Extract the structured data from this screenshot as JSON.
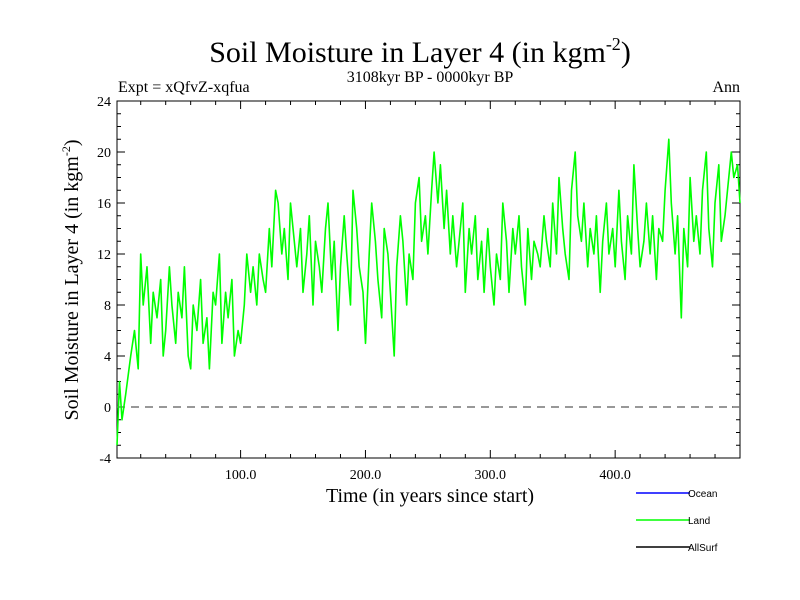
{
  "chart_data": {
    "type": "line",
    "title": "Soil Moisture in Layer 4 (in kgm",
    "title_sup": "-2",
    "title_close": ")",
    "subtitle": "3108kyr BP - 0000kyr BP",
    "experiment_label": "Expt = xQfvZ-xqfua",
    "season_label": "Ann",
    "xlabel": "Time (in years since start)",
    "ylabel": "Soil Moisture in Layer 4 (in kgm",
    "ylabel_sup": "-2",
    "ylabel_close": ")",
    "xlim": [
      1,
      500
    ],
    "ylim": [
      -4,
      24
    ],
    "x_ticks": [
      100,
      200,
      300,
      400
    ],
    "x_tick_labels": [
      "100.0",
      "200.0",
      "300.0",
      "400.0"
    ],
    "y_ticks": [
      -4,
      0,
      4,
      8,
      12,
      16,
      20,
      24
    ],
    "y_tick_labels": [
      "-4",
      "0",
      "4",
      "8",
      "12",
      "16",
      "20",
      "24"
    ],
    "zero_line": 0,
    "legend": [
      {
        "name": "Ocean",
        "color": "#0000ff"
      },
      {
        "name": "Land",
        "color": "#00ff00"
      },
      {
        "name": "AllSurf",
        "color": "#000000"
      }
    ],
    "series": [
      {
        "name": "Land",
        "color": "#00ff00",
        "x": [
          1,
          3,
          5,
          8,
          12,
          15,
          18,
          20,
          22,
          25,
          28,
          30,
          33,
          36,
          38,
          40,
          43,
          45,
          48,
          50,
          53,
          55,
          58,
          60,
          62,
          65,
          68,
          70,
          73,
          75,
          78,
          80,
          83,
          85,
          88,
          90,
          93,
          95,
          98,
          100,
          103,
          105,
          108,
          110,
          113,
          115,
          118,
          120,
          123,
          125,
          128,
          130,
          133,
          135,
          138,
          140,
          143,
          145,
          148,
          150,
          153,
          155,
          158,
          160,
          163,
          165,
          168,
          170,
          173,
          175,
          178,
          180,
          183,
          185,
          188,
          190,
          193,
          195,
          198,
          200,
          203,
          205,
          208,
          210,
          213,
          215,
          218,
          220,
          223,
          225,
          228,
          230,
          233,
          235,
          238,
          240,
          243,
          245,
          248,
          250,
          253,
          255,
          258,
          260,
          263,
          265,
          268,
          270,
          273,
          275,
          278,
          280,
          283,
          285,
          288,
          290,
          293,
          295,
          298,
          300,
          303,
          305,
          308,
          310,
          313,
          315,
          318,
          320,
          323,
          325,
          328,
          330,
          333,
          335,
          338,
          340,
          343,
          345,
          348,
          350,
          353,
          355,
          358,
          360,
          363,
          365,
          368,
          370,
          373,
          375,
          378,
          380,
          383,
          385,
          388,
          390,
          393,
          395,
          398,
          400,
          403,
          405,
          408,
          410,
          413,
          415,
          418,
          420,
          423,
          425,
          428,
          430,
          433,
          435,
          438,
          440,
          443,
          445,
          448,
          450,
          453,
          455,
          458,
          460,
          463,
          465,
          468,
          470,
          473,
          475,
          478,
          480,
          483,
          485,
          488,
          490,
          493,
          495,
          498,
          500
        ],
        "values": [
          -3,
          2,
          -1,
          1,
          4,
          6,
          3,
          12,
          8,
          11,
          5,
          9,
          7,
          10,
          4,
          6,
          11,
          8,
          5,
          9,
          7,
          11,
          4,
          3,
          8,
          6,
          10,
          5,
          7,
          3,
          9,
          8,
          12,
          5,
          9,
          7,
          10,
          4,
          6,
          5,
          8,
          12,
          9,
          11,
          8,
          12,
          10,
          9,
          14,
          11,
          17,
          16,
          12,
          14,
          10,
          16,
          13,
          11,
          14,
          9,
          12,
          15,
          8,
          13,
          11,
          9,
          14,
          16,
          10,
          13,
          6,
          11,
          15,
          12,
          8,
          17,
          14,
          11,
          9,
          5,
          12,
          16,
          13,
          10,
          7,
          14,
          12,
          9,
          4,
          11,
          15,
          13,
          8,
          12,
          10,
          16,
          18,
          13,
          15,
          12,
          17,
          20,
          16,
          19,
          14,
          17,
          12,
          15,
          11,
          13,
          16,
          9,
          14,
          12,
          15,
          10,
          13,
          9,
          14,
          11,
          8,
          12,
          10,
          16,
          13,
          9,
          14,
          12,
          15,
          11,
          8,
          14,
          10,
          13,
          12,
          11,
          15,
          13,
          11,
          16,
          12,
          18,
          14,
          12,
          10,
          17,
          20,
          15,
          13,
          16,
          11,
          14,
          12,
          15,
          9,
          13,
          16,
          12,
          14,
          11,
          17,
          13,
          10,
          15,
          12,
          19,
          14,
          11,
          13,
          16,
          12,
          15,
          10,
          14,
          13,
          17,
          21,
          16,
          12,
          15,
          7,
          14,
          11,
          18,
          13,
          15,
          12,
          17,
          20,
          14,
          11,
          16,
          19,
          13,
          15,
          17,
          20,
          18,
          19,
          16
        ]
      },
      {
        "name": "Ocean",
        "color": "#0000ff",
        "x": [],
        "values": []
      },
      {
        "name": "AllSurf",
        "color": "#000000",
        "x": [],
        "values": []
      }
    ]
  }
}
